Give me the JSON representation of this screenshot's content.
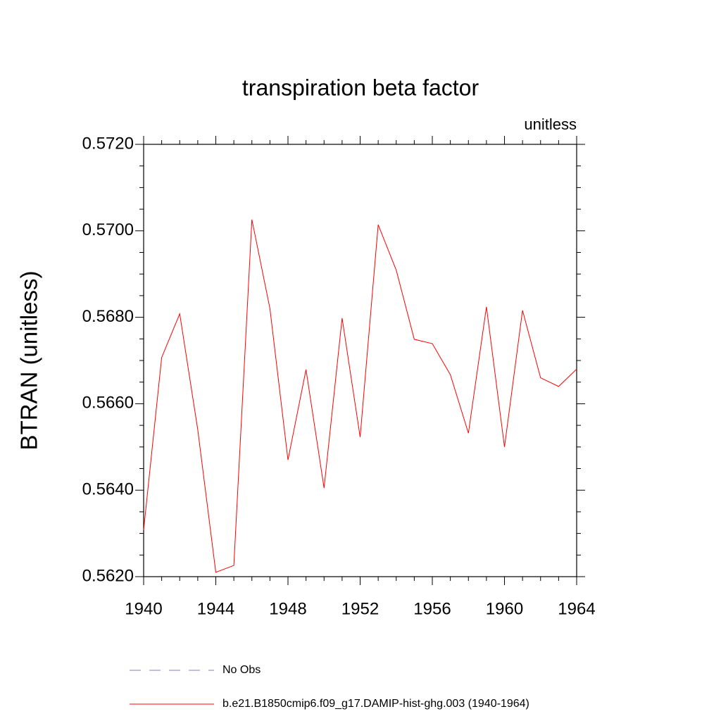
{
  "chart_data": {
    "type": "line",
    "title": "transpiration beta factor",
    "subtitle": "unitless",
    "y_label": "BTRAN  (unitless)",
    "x": [
      1940,
      1941,
      1942,
      1943,
      1944,
      1945,
      1946,
      1947,
      1948,
      1949,
      1950,
      1951,
      1952,
      1953,
      1954,
      1955,
      1956,
      1957,
      1958,
      1959,
      1960,
      1961,
      1962,
      1963,
      1964
    ],
    "series": [
      {
        "name": "No Obs",
        "color": "#8080c8",
        "dashed": true,
        "values": [
          null,
          null,
          null,
          null,
          null,
          null,
          null,
          null,
          null,
          null,
          null,
          null,
          null,
          null,
          null,
          null,
          null,
          null,
          null,
          null,
          null,
          null,
          null,
          null,
          null
        ]
      },
      {
        "name": "b.e21.B1850cmip6.f09_g17.DAMIP-hist-ghg.003 (1940-1964)",
        "color": "#ff0000",
        "dashed": false,
        "values": [
          0.56308,
          0.56707,
          0.56808,
          0.5654,
          0.5621,
          0.56226,
          0.57026,
          0.5682,
          0.5647,
          0.56679,
          0.56405,
          0.56798,
          0.56523,
          0.57014,
          0.56909,
          0.56749,
          0.56739,
          0.56667,
          0.56532,
          0.56824,
          0.565,
          0.56816,
          0.5666,
          0.5664,
          0.5668
        ]
      }
    ],
    "xlim": [
      1940,
      1964
    ],
    "ylim": [
      0.562,
      0.572
    ],
    "xticks": [
      1940,
      1944,
      1948,
      1952,
      1956,
      1960,
      1964
    ],
    "yticks": [
      {
        "value": 0.562,
        "label": "0.5620"
      },
      {
        "value": 0.564,
        "label": "0.5640"
      },
      {
        "value": 0.566,
        "label": "0.5660"
      },
      {
        "value": 0.568,
        "label": "0.5680"
      },
      {
        "value": 0.57,
        "label": "0.5700"
      },
      {
        "value": 0.572,
        "label": "0.5720"
      }
    ],
    "grid": false
  }
}
